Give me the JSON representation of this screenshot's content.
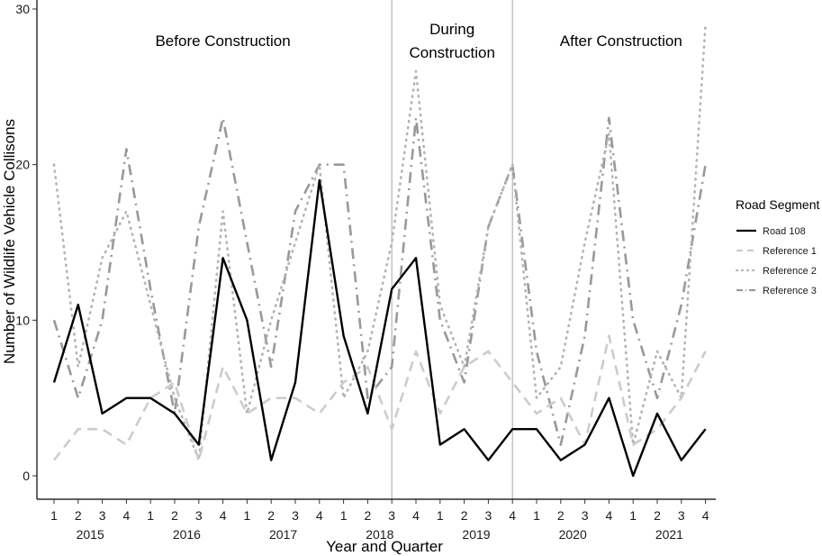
{
  "chart_data": {
    "type": "line",
    "xlabel": "Year and Quarter",
    "ylabel": "Number of Wildlife Vehicle Collisons",
    "ylim": [
      0,
      30
    ],
    "yticks": [
      0,
      10,
      20,
      30
    ],
    "quarters": [
      "1",
      "2",
      "3",
      "4",
      "1",
      "2",
      "3",
      "4",
      "1",
      "2",
      "3",
      "4",
      "1",
      "2",
      "3",
      "4",
      "1",
      "2",
      "3",
      "4",
      "1",
      "2",
      "3",
      "4",
      "1",
      "2",
      "3",
      "4"
    ],
    "years": [
      {
        "label": "2015",
        "center_index": 1.5
      },
      {
        "label": "2016",
        "center_index": 5.5
      },
      {
        "label": "2017",
        "center_index": 9.5
      },
      {
        "label": "2018",
        "center_index": 13.5
      },
      {
        "label": "2019",
        "center_index": 17.5
      },
      {
        "label": "2020",
        "center_index": 21.5
      },
      {
        "label": "2021",
        "center_index": 25.5
      }
    ],
    "phase_dividers": [
      14,
      19
    ],
    "phases": [
      {
        "lines": [
          "Before Construction"
        ],
        "center_index": 7
      },
      {
        "lines": [
          "During",
          "Construction"
        ],
        "center_index": 16.5
      },
      {
        "lines": [
          "After Construction"
        ],
        "center_index": 23.5
      }
    ],
    "legend_title": "Road Segment",
    "series": [
      {
        "name": "Road 108",
        "color": "#000000",
        "style": "solid",
        "values": [
          6,
          11,
          4,
          5,
          5,
          4,
          2,
          14,
          10,
          1,
          6,
          19,
          9,
          4,
          12,
          14,
          2,
          3,
          1,
          3,
          3,
          1,
          2,
          5,
          0,
          4,
          1,
          3
        ]
      },
      {
        "name": "Reference 1",
        "color": "#cccccc",
        "style": "dashed",
        "values": [
          1,
          3,
          3,
          2,
          5,
          6,
          1,
          7,
          4,
          5,
          5,
          4,
          6,
          7,
          3,
          8,
          4,
          7,
          8,
          6,
          4,
          5,
          2,
          9,
          2,
          3,
          5,
          8
        ]
      },
      {
        "name": "Reference 2",
        "color": "#b3b3b3",
        "style": "dotted",
        "values": [
          20,
          7,
          14,
          17,
          11,
          5,
          1,
          17,
          4,
          10,
          15,
          20,
          5,
          8,
          15,
          26,
          11,
          7,
          16,
          20,
          5,
          7,
          15,
          22,
          2,
          8,
          5,
          29
        ]
      },
      {
        "name": "Reference 3",
        "color": "#999999",
        "style": "dotdash",
        "values": [
          10,
          5,
          10,
          21,
          12,
          4,
          16,
          23,
          15,
          7,
          17,
          20,
          20,
          5,
          7,
          23,
          10,
          6,
          16,
          20,
          8,
          2,
          9,
          23,
          10,
          5,
          11,
          20
        ]
      }
    ]
  }
}
